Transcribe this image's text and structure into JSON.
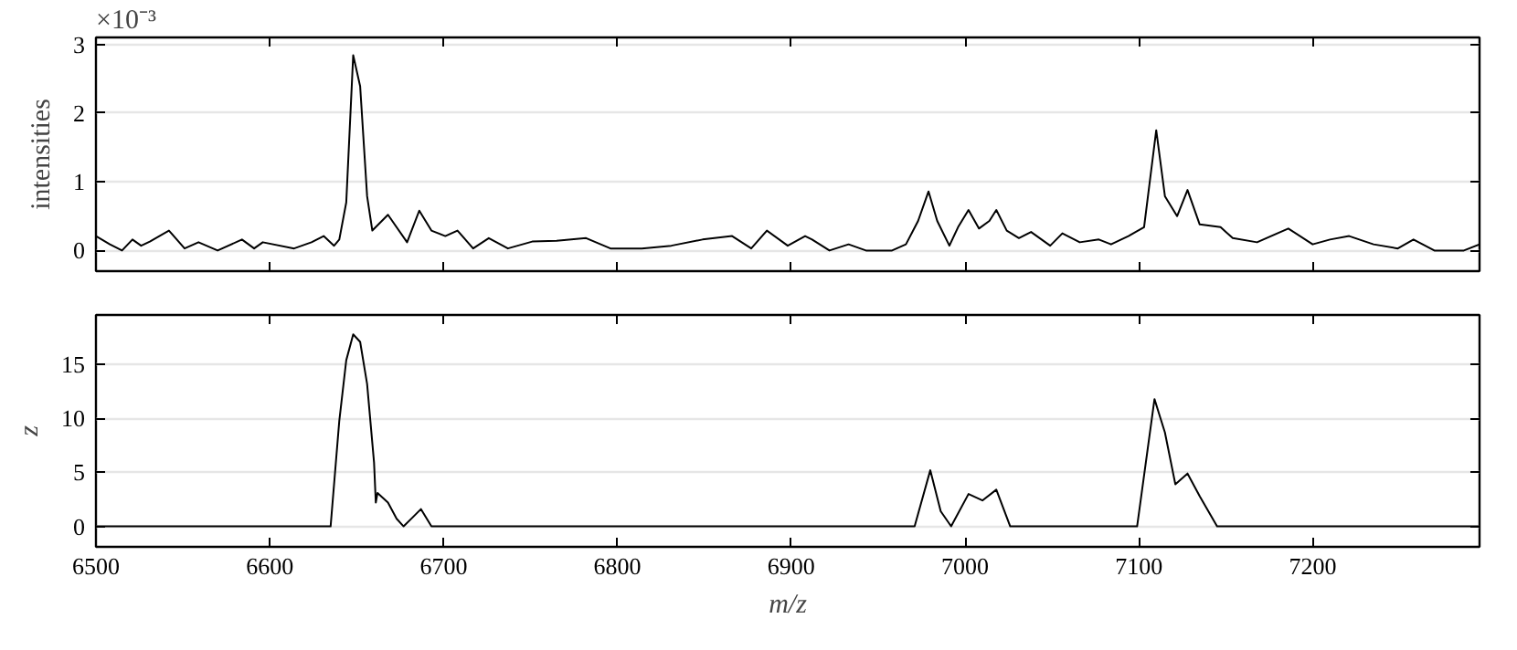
{
  "chart_data": [
    {
      "type": "line",
      "ylabel": "intensities",
      "annotations": [
        "×10⁻³"
      ],
      "xlim": [
        6500,
        7296
      ],
      "ylim": [
        -0.3,
        3.1
      ],
      "yticks": [
        0,
        1,
        2,
        3
      ],
      "xticks": [
        6500,
        6600,
        6700,
        6800,
        6900,
        7000,
        7100,
        7200
      ],
      "tick_labels": "y",
      "grid": "y",
      "series": [
        {
          "color": "#000000",
          "x": [
            6500,
            6508,
            6515,
            6521,
            6526,
            6531,
            6542,
            6551,
            6559,
            6570,
            6584,
            6591,
            6596,
            6614,
            6624,
            6631,
            6637,
            6640,
            6644,
            6648,
            6652,
            6656,
            6659,
            6668,
            6679,
            6686,
            6693,
            6701,
            6708,
            6717,
            6726,
            6737,
            6751,
            6765,
            6782,
            6796,
            6814,
            6831,
            6849,
            6866,
            6877,
            6886,
            6898,
            6908,
            6912,
            6922,
            6933,
            6943,
            6958,
            6966,
            6973,
            6979,
            6984,
            6991,
            6996,
            7002,
            7008,
            7014,
            7018,
            7024,
            7031,
            7038,
            7049,
            7056,
            7066,
            7077,
            7084,
            7094,
            7103,
            7110,
            7115,
            7122,
            7128,
            7135,
            7147,
            7154,
            7168,
            7186,
            7200,
            7210,
            7221,
            7235,
            7249,
            7258,
            7270,
            7287,
            7296
          ],
          "values": [
            0.21,
            0.09,
            0,
            0.16,
            0.07,
            0.13,
            0.29,
            0.03,
            0.12,
            0,
            0.16,
            0.03,
            0.12,
            0.03,
            0.12,
            0.21,
            0.07,
            0.16,
            0.7,
            2.84,
            2.39,
            0.79,
            0.29,
            0.52,
            0.12,
            0.58,
            0.29,
            0.21,
            0.29,
            0.03,
            0.18,
            0.03,
            0.13,
            0.14,
            0.18,
            0.03,
            0.03,
            0.07,
            0.16,
            0.21,
            0.03,
            0.29,
            0.07,
            0.21,
            0.16,
            0,
            0.09,
            0,
            0,
            0.09,
            0.43,
            0.86,
            0.43,
            0.07,
            0.34,
            0.59,
            0.32,
            0.43,
            0.59,
            0.29,
            0.18,
            0.27,
            0.07,
            0.25,
            0.12,
            0.16,
            0.09,
            0.21,
            0.34,
            1.75,
            0.79,
            0.5,
            0.88,
            0.38,
            0.34,
            0.18,
            0.12,
            0.32,
            0.09,
            0.16,
            0.21,
            0.09,
            0.03,
            0.16,
            0,
            0,
            0.09
          ]
        }
      ]
    },
    {
      "type": "line",
      "xlabel": "m/z",
      "ylabel": "z",
      "xlim": [
        6500,
        7296
      ],
      "ylim": [
        -1.9,
        19.6
      ],
      "yticks": [
        0,
        5,
        10,
        15
      ],
      "xticks": [
        6500,
        6600,
        6700,
        6800,
        6900,
        7000,
        7100,
        7200
      ],
      "grid": "y",
      "series": [
        {
          "color": "#000000",
          "x": [
            6500,
            6635,
            6640,
            6644,
            6648,
            6652,
            6656,
            6660,
            6661,
            6662,
            6668,
            6673,
            6677,
            6682,
            6687,
            6693,
            6971,
            6980,
            6986,
            6992,
            7002,
            7010,
            7018,
            7026,
            7099,
            7109,
            7115,
            7121,
            7128,
            7135,
            7145,
            7296
          ],
          "values": [
            0,
            0,
            9.8,
            15.4,
            17.8,
            17.1,
            13.2,
            5.9,
            2.2,
            3.1,
            2.2,
            0.7,
            0,
            0.8,
            1.6,
            0,
            0,
            5.2,
            1.4,
            0,
            3.0,
            2.4,
            3.4,
            0,
            0,
            11.8,
            8.7,
            3.9,
            4.9,
            2.8,
            0,
            0
          ]
        }
      ]
    }
  ]
}
